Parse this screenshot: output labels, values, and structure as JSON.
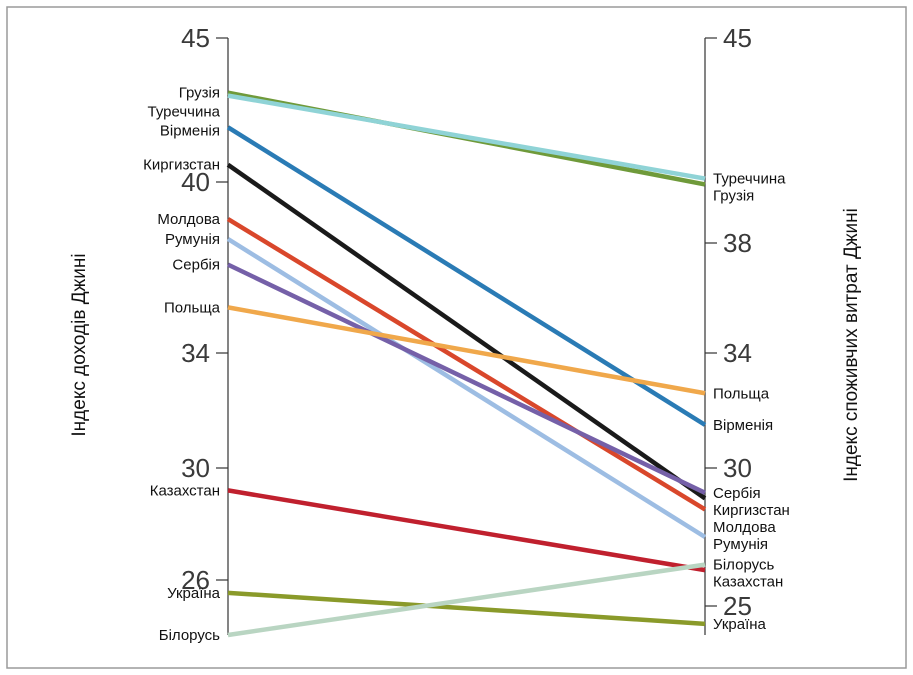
{
  "chart_data": {
    "type": "line",
    "categories": [
      "Індекс доходів Джині",
      "Індекс споживчих витрат Джині"
    ],
    "left_axis": {
      "label": "Індекс доходів Джині",
      "ticks": [
        45,
        40,
        34,
        30,
        26
      ],
      "ylim": [
        23.0,
        45.0
      ]
    },
    "right_axis": {
      "label": "Індекс споживчих витрат Джині",
      "ticks": [
        45,
        38,
        34,
        30,
        25
      ],
      "ylim": [
        23.7,
        45.0
      ]
    },
    "series": [
      {
        "name": "Грузія",
        "values": [
          43.1,
          40.0
        ],
        "color": "#6f9a3a",
        "left_label": "Грузія",
        "right_label": "Грузія"
      },
      {
        "name": "Туреччина",
        "values": [
          43.0,
          40.2
        ],
        "color": "#8fd3d6",
        "left_label": "Туреччина",
        "right_label": "Туреччина"
      },
      {
        "name": "Вірменія",
        "values": [
          41.9,
          31.5
        ],
        "color": "#2a7bb5",
        "left_label": "Вірменія",
        "right_label": "Вірменія"
      },
      {
        "name": "Киргизстан",
        "values": [
          40.6,
          28.9
        ],
        "color": "#1a1a1a",
        "left_label": "Киргизстан",
        "right_label": "Киргизстан"
      },
      {
        "name": "Молдова",
        "values": [
          38.7,
          28.5
        ],
        "color": "#d9472b",
        "left_label": "Молдова",
        "right_label": "Молдова"
      },
      {
        "name": "Румунія",
        "values": [
          38.0,
          27.5
        ],
        "color": "#9dbde3",
        "left_label": "Румунія",
        "right_label": "Румунія"
      },
      {
        "name": "Сербія",
        "values": [
          37.1,
          29.1
        ],
        "color": "#7560a8",
        "left_label": "Сербія",
        "right_label": "Сербія"
      },
      {
        "name": "Польща",
        "values": [
          35.6,
          32.6
        ],
        "color": "#f0a84b",
        "left_label": "Польща",
        "right_label": "Польща"
      },
      {
        "name": "Казахстан",
        "values": [
          29.2,
          26.3
        ],
        "color": "#c0202e",
        "left_label": "Казахстан",
        "right_label": "Казахстан"
      },
      {
        "name": "Україна",
        "values": [
          25.3,
          24.2
        ],
        "color": "#8a9a2a",
        "left_label": "Україна",
        "right_label": "Україна"
      },
      {
        "name": "Білорусь",
        "values": [
          23.0,
          26.5
        ],
        "color": "#b9d5c2",
        "left_label": "Білорусь",
        "right_label": "Білорусь"
      }
    ],
    "grid": false,
    "legend": "none"
  }
}
